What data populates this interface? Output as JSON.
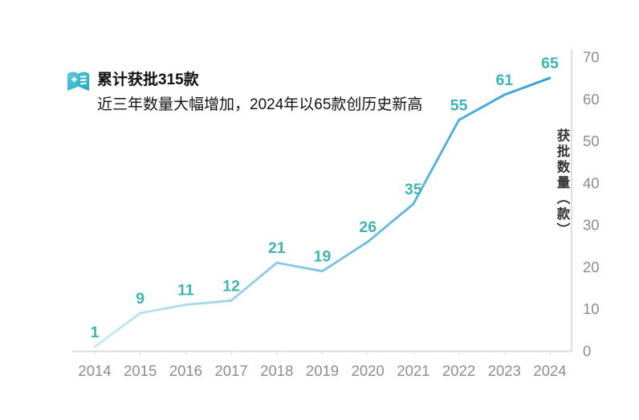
{
  "header": {
    "icon": "book-plus-icon",
    "title": "累计获批315款",
    "subtitle": "近三年数量大幅增加，2024年以65款创历史新高"
  },
  "chart_data": {
    "type": "line",
    "x": [
      "2014",
      "2015",
      "2016",
      "2017",
      "2018",
      "2019",
      "2020",
      "2021",
      "2022",
      "2023",
      "2024"
    ],
    "values": [
      1,
      9,
      11,
      12,
      21,
      19,
      26,
      35,
      55,
      61,
      65
    ],
    "title": "累计获批315款",
    "subtitle": "近三年数量大幅增加，2024年以65款创历史新高",
    "xlabel": "",
    "ylabel": "获批数量（款）",
    "ylim": [
      0,
      70
    ],
    "y_ticks": [
      0,
      10,
      20,
      30,
      40,
      50,
      60,
      70
    ],
    "y_axis_side": "right",
    "grid": false,
    "legend": "none",
    "data_labels_shown": true,
    "colors": {
      "line_gradient_start": "#CBE9F0",
      "line_gradient_end": "#2E9FD8",
      "data_label": "#3FB4B2",
      "axis_line": "#D9D9D9",
      "tick_label": "#8C8C8C",
      "icon_teal_light": "#56C6D6",
      "icon_teal_dark": "#2BAEC6"
    }
  }
}
